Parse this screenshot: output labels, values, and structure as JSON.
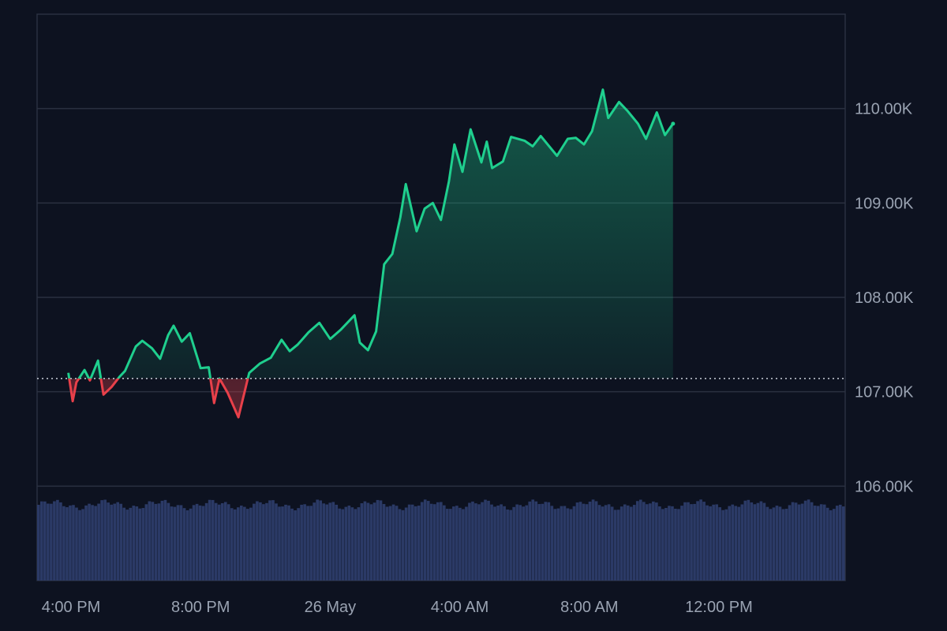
{
  "chart_data": {
    "type": "area",
    "title": "",
    "xlabel": "",
    "ylabel": "",
    "x_tick_labels": [
      "4:00 PM",
      "8:00 PM",
      "26 May",
      "4:00 AM",
      "8:00 AM",
      "12:00 PM"
    ],
    "x_tick_times": [
      "2025-05-25 16:00",
      "2025-05-25 20:00",
      "2025-05-26 00:00",
      "2025-05-26 04:00",
      "2025-05-26 08:00",
      "2025-05-26 12:00"
    ],
    "y_tick_labels": [
      "106.00K",
      "107.00K",
      "108.00K",
      "109.00K",
      "110.00K"
    ],
    "y_tick_values": [
      106000,
      107000,
      108000,
      109000,
      110000
    ],
    "ylim": [
      105000,
      111000
    ],
    "grid": true,
    "baseline": 107140,
    "colors": {
      "up": "#1fcf8e",
      "down": "#e8404a",
      "volume": "#2b3a66",
      "grid": "#2a3040",
      "background": "#0d1220"
    },
    "series": [
      {
        "values": [
          [
            "2025-05-25 15:55",
            107200
          ],
          [
            "2025-05-25 16:03",
            106900
          ],
          [
            "2025-05-25 16:10",
            107100
          ],
          [
            "2025-05-25 16:25",
            107230
          ],
          [
            "2025-05-25 16:35",
            107120
          ],
          [
            "2025-05-25 16:50",
            107330
          ],
          [
            "2025-05-25 17:00",
            106970
          ],
          [
            "2025-05-25 17:15",
            107050
          ],
          [
            "2025-05-25 17:30",
            107160
          ],
          [
            "2025-05-25 17:40",
            107220
          ],
          [
            "2025-05-25 18:00",
            107480
          ],
          [
            "2025-05-25 18:12",
            107540
          ],
          [
            "2025-05-25 18:30",
            107460
          ],
          [
            "2025-05-25 18:45",
            107350
          ],
          [
            "2025-05-25 19:00",
            107600
          ],
          [
            "2025-05-25 19:10",
            107700
          ],
          [
            "2025-05-25 19:25",
            107530
          ],
          [
            "2025-05-25 19:40",
            107620
          ],
          [
            "2025-05-25 20:00",
            107250
          ],
          [
            "2025-05-25 20:15",
            107260
          ],
          [
            "2025-05-25 20:25",
            106880
          ],
          [
            "2025-05-25 20:35",
            107140
          ],
          [
            "2025-05-25 20:50",
            106990
          ],
          [
            "2025-05-25 21:10",
            106730
          ],
          [
            "2025-05-25 21:30",
            107200
          ],
          [
            "2025-05-25 21:50",
            107300
          ],
          [
            "2025-05-25 22:10",
            107360
          ],
          [
            "2025-05-25 22:30",
            107550
          ],
          [
            "2025-05-25 22:45",
            107430
          ],
          [
            "2025-05-25 23:00",
            107500
          ],
          [
            "2025-05-25 23:20",
            107630
          ],
          [
            "2025-05-25 23:40",
            107730
          ],
          [
            "2025-05-26 00:00",
            107560
          ],
          [
            "2025-05-26 00:20",
            107660
          ],
          [
            "2025-05-26 00:45",
            107810
          ],
          [
            "2025-05-26 00:55",
            107520
          ],
          [
            "2025-05-26 01:10",
            107440
          ],
          [
            "2025-05-26 01:25",
            107640
          ],
          [
            "2025-05-26 01:40",
            108350
          ],
          [
            "2025-05-26 01:55",
            108460
          ],
          [
            "2025-05-26 02:10",
            108850
          ],
          [
            "2025-05-26 02:20",
            109200
          ],
          [
            "2025-05-26 02:40",
            108700
          ],
          [
            "2025-05-26 02:55",
            108940
          ],
          [
            "2025-05-26 03:10",
            109000
          ],
          [
            "2025-05-26 03:25",
            108820
          ],
          [
            "2025-05-26 03:40",
            109230
          ],
          [
            "2025-05-26 03:50",
            109620
          ],
          [
            "2025-05-26 04:05",
            109330
          ],
          [
            "2025-05-26 04:20",
            109780
          ],
          [
            "2025-05-26 04:40",
            109430
          ],
          [
            "2025-05-26 04:50",
            109650
          ],
          [
            "2025-05-26 05:00",
            109370
          ],
          [
            "2025-05-26 05:20",
            109440
          ],
          [
            "2025-05-26 05:35",
            109700
          ],
          [
            "2025-05-26 06:00",
            109660
          ],
          [
            "2025-05-26 06:15",
            109600
          ],
          [
            "2025-05-26 06:30",
            109710
          ],
          [
            "2025-05-26 07:00",
            109500
          ],
          [
            "2025-05-26 07:20",
            109680
          ],
          [
            "2025-05-26 07:35",
            109690
          ],
          [
            "2025-05-26 07:50",
            109620
          ],
          [
            "2025-05-26 08:05",
            109760
          ],
          [
            "2025-05-26 08:15",
            109980
          ],
          [
            "2025-05-26 08:25",
            110200
          ],
          [
            "2025-05-26 08:35",
            109900
          ],
          [
            "2025-05-26 08:55",
            110070
          ],
          [
            "2025-05-26 09:10",
            109980
          ],
          [
            "2025-05-26 09:30",
            109840
          ],
          [
            "2025-05-26 09:45",
            109680
          ],
          [
            "2025-05-26 10:05",
            109960
          ],
          [
            "2025-05-26 10:20",
            109720
          ],
          [
            "2025-05-26 10:35",
            109840
          ]
        ]
      }
    ],
    "volume_level": 0.85
  }
}
